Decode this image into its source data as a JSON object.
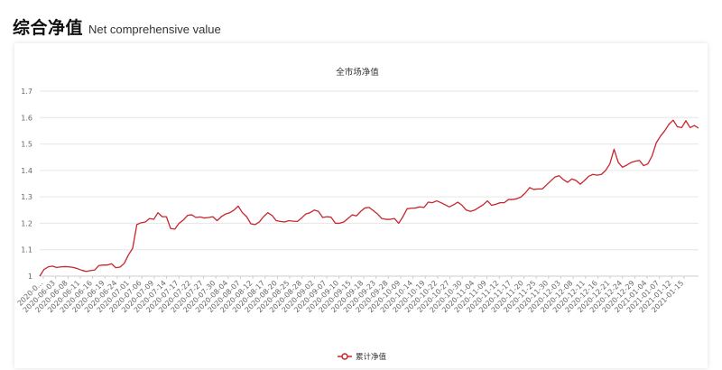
{
  "header": {
    "title_zh": "综合净值",
    "title_en": "Net comprehensive value"
  },
  "colors": {
    "series": "#c8252c",
    "grid": "#e6e6e6",
    "axis": "#cccccc"
  },
  "chart_data": {
    "type": "line",
    "title": "全市场净值",
    "xlabel": "",
    "ylabel": "",
    "ylim": [
      1.0,
      1.7
    ],
    "yticks": [
      1,
      1.1,
      1.2,
      1.3,
      1.4,
      1.5,
      1.6,
      1.7
    ],
    "grid": true,
    "legend": "bottom-center",
    "x_tick_labels": [
      "2020-0...",
      "2020-06-03",
      "2020-06-08",
      "2020-06-11",
      "2020-06-16",
      "2020-06-19",
      "2020-06-24",
      "2020-07-01",
      "2020-07-06",
      "2020-07-09",
      "2020-07-14",
      "2020-07-17",
      "2020-07-22",
      "2020-07-27",
      "2020-07-30",
      "2020-08-04",
      "2020-08-07",
      "2020-08-12",
      "2020-08-17",
      "2020-08-20",
      "2020-08-25",
      "2020-08-28",
      "2020-09-02",
      "2020-09-07",
      "2020-09-10",
      "2020-09-15",
      "2020-09-18",
      "2020-09-23",
      "2020-09-28",
      "2020-10-09",
      "2020-10-14",
      "2020-10-19",
      "2020-10-22",
      "2020-10-27",
      "2020-10-30",
      "2020-11-04",
      "2020-11-09",
      "2020-11-12",
      "2020-11-17",
      "2020-11-20",
      "2020-11-25",
      "2020-11-30",
      "2020-12-03",
      "2020-12-08",
      "2020-12-11",
      "2020-12-16",
      "2020-12-21",
      "2020-12-24",
      "2020-12-29",
      "2021-01-04",
      "2021-01-07",
      "2021-01-12",
      "2021-01-15"
    ],
    "series": [
      {
        "name": "累计净值",
        "values": [
          1.0,
          1.025,
          1.035,
          1.038,
          1.033,
          1.035,
          1.036,
          1.035,
          1.033,
          1.028,
          1.022,
          1.018,
          1.021,
          1.023,
          1.04,
          1.042,
          1.042,
          1.047,
          1.032,
          1.034,
          1.048,
          1.08,
          1.105,
          1.195,
          1.202,
          1.205,
          1.218,
          1.215,
          1.24,
          1.225,
          1.225,
          1.18,
          1.178,
          1.2,
          1.212,
          1.23,
          1.232,
          1.222,
          1.224,
          1.22,
          1.222,
          1.225,
          1.21,
          1.225,
          1.235,
          1.24,
          1.25,
          1.265,
          1.24,
          1.225,
          1.198,
          1.195,
          1.205,
          1.225,
          1.24,
          1.23,
          1.21,
          1.207,
          1.205,
          1.21,
          1.208,
          1.207,
          1.22,
          1.235,
          1.24,
          1.25,
          1.245,
          1.222,
          1.225,
          1.223,
          1.2,
          1.2,
          1.205,
          1.218,
          1.232,
          1.228,
          1.245,
          1.258,
          1.26,
          1.248,
          1.235,
          1.218,
          1.215,
          1.215,
          1.218,
          1.2,
          1.225,
          1.255,
          1.257,
          1.258,
          1.262,
          1.26,
          1.28,
          1.278,
          1.285,
          1.278,
          1.27,
          1.262,
          1.27,
          1.28,
          1.268,
          1.25,
          1.245,
          1.25,
          1.26,
          1.27,
          1.285,
          1.268,
          1.272,
          1.278,
          1.278,
          1.29,
          1.29,
          1.293,
          1.3,
          1.315,
          1.335,
          1.328,
          1.33,
          1.33,
          1.345,
          1.36,
          1.375,
          1.38,
          1.365,
          1.355,
          1.368,
          1.362,
          1.348,
          1.362,
          1.378,
          1.385,
          1.382,
          1.385,
          1.4,
          1.425,
          1.48,
          1.43,
          1.412,
          1.42,
          1.43,
          1.435,
          1.438,
          1.418,
          1.425,
          1.455,
          1.505,
          1.53,
          1.55,
          1.575,
          1.59,
          1.565,
          1.562,
          1.588,
          1.562,
          1.57,
          1.56
        ]
      }
    ]
  }
}
